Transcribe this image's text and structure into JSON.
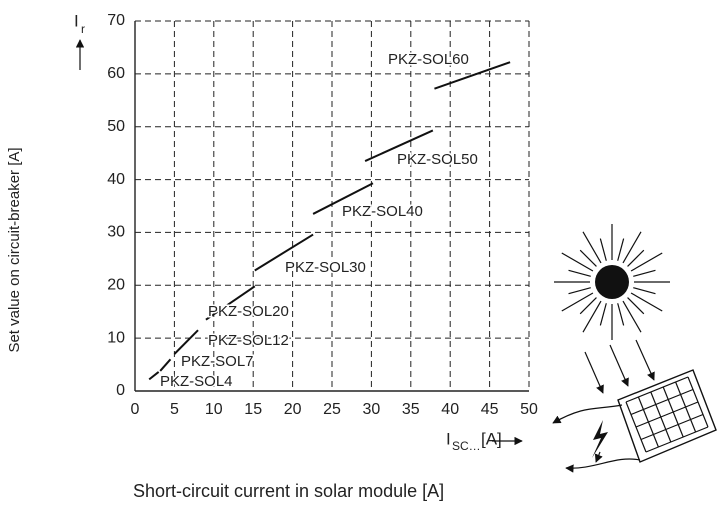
{
  "chart_data": {
    "type": "line",
    "y_title": "Set value on circuit-breaker [A]",
    "x_title": "Short-circuit current in solar module [A]",
    "y_symbol": {
      "main": "I",
      "sub": "r"
    },
    "x_symbol": {
      "main": "I",
      "sub": "SC…",
      "unit": "[A]"
    },
    "xlim": [
      0,
      50
    ],
    "xticks": [
      0,
      5,
      10,
      15,
      20,
      25,
      30,
      35,
      40,
      45,
      50
    ],
    "ylim": [
      0,
      70
    ],
    "yticks": [
      0,
      10,
      20,
      30,
      40,
      50,
      60,
      70
    ],
    "grid": true,
    "color": "#111111",
    "series": [
      {
        "name": "PKZ-SOL4",
        "x": [
          1.8,
          3.0
        ],
        "values": [
          2.2,
          3.6
        ]
      },
      {
        "name": "PKZ-SOL7",
        "x": [
          3.2,
          4.5
        ],
        "values": [
          3.8,
          6.0
        ]
      },
      {
        "name": "PKZ-SOL12",
        "x": [
          5.0,
          8.0
        ],
        "values": [
          7.0,
          11.5
        ]
      },
      {
        "name": "PKZ-SOL20",
        "x": [
          9.0,
          15.2
        ],
        "values": [
          13.5,
          19.8
        ]
      },
      {
        "name": "PKZ-SOL30",
        "x": [
          15.2,
          22.6
        ],
        "values": [
          22.8,
          29.6
        ]
      },
      {
        "name": "PKZ-SOL40",
        "x": [
          22.6,
          30.2
        ],
        "values": [
          33.5,
          39.3
        ]
      },
      {
        "name": "PKZ-SOL50",
        "x": [
          29.2,
          37.8
        ],
        "values": [
          43.5,
          49.3
        ]
      },
      {
        "name": "PKZ-SOL60",
        "x": [
          38.0,
          47.6
        ],
        "values": [
          57.2,
          62.2
        ]
      }
    ]
  }
}
